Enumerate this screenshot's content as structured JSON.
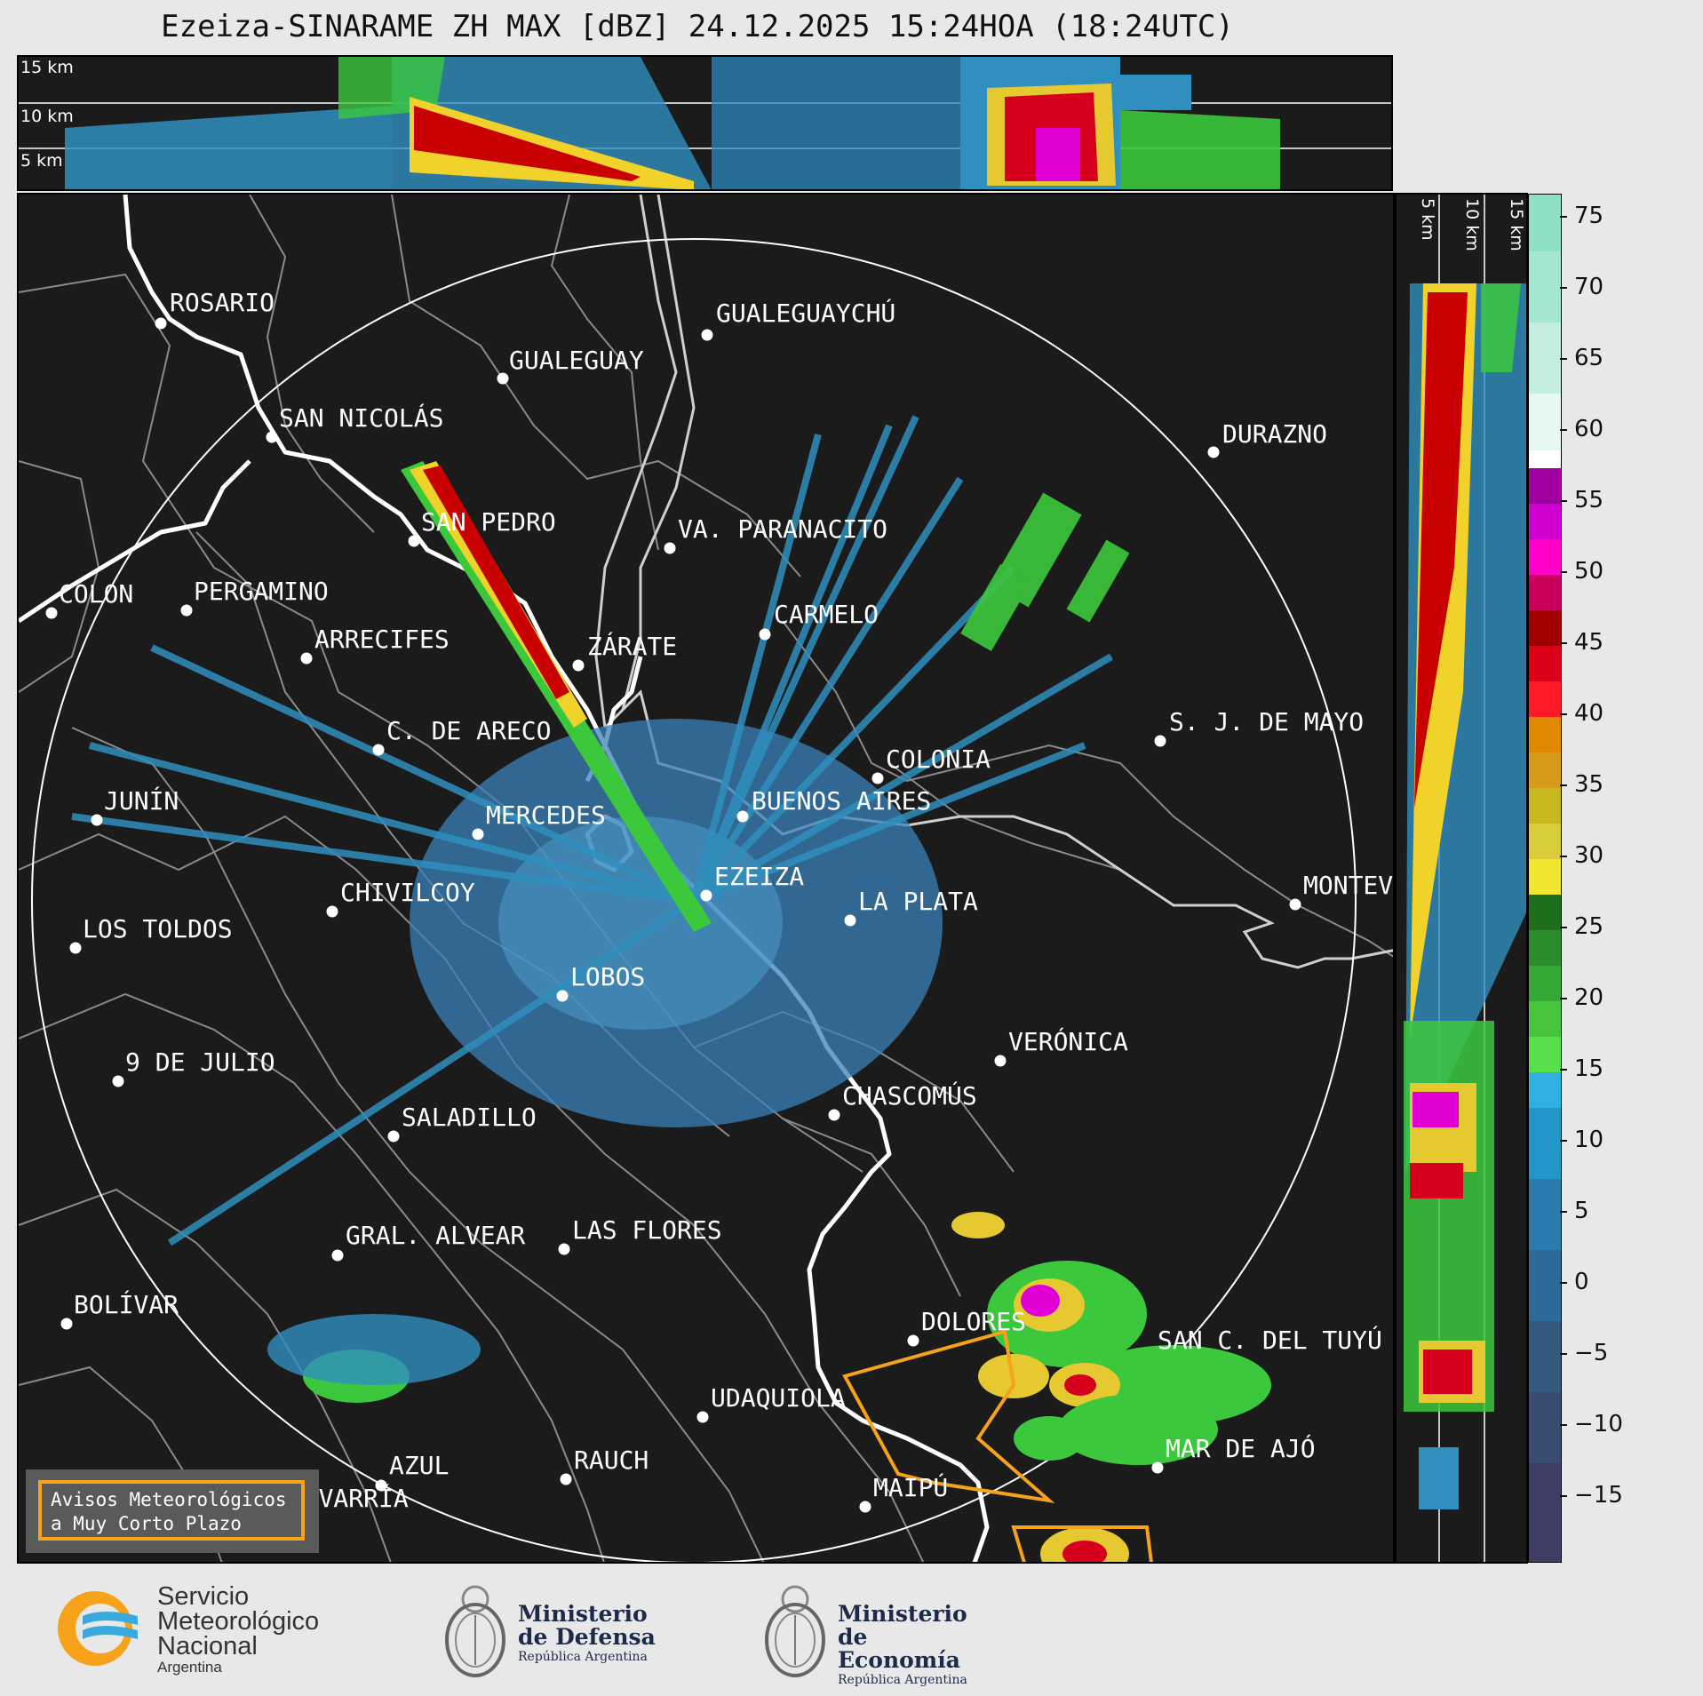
{
  "title": "Ezeiza-SINARAME ZH MAX [dBZ] 24.12.2025 15:24HOA (18:24UTC)",
  "top_panel": {
    "altitude_labels": [
      "15 km",
      "10 km",
      "5 km"
    ]
  },
  "side_panel": {
    "altitude_labels": [
      "5 km",
      "10 km",
      "15 km"
    ]
  },
  "colorbar": {
    "ticks": [
      "75",
      "70",
      "65",
      "60",
      "55",
      "50",
      "45",
      "40",
      "35",
      "30",
      "25",
      "20",
      "15",
      "10",
      "5",
      "0",
      "−5",
      "−10",
      "−15"
    ],
    "range": [
      -20,
      77
    ]
  },
  "cities": [
    "ROSARIO",
    "GUALEGUAYCHÚ",
    "GUALEGUAY",
    "SAN NICOLÁS",
    "DURAZNO",
    "SAN PEDRO",
    "VA. PARANACITO",
    "COLON",
    "PERGAMINO",
    "CARMELO",
    "ARRECIFES",
    "ZÁRATE",
    "S. J. DE MAYO",
    "C. DE ARECO",
    "COLONIA",
    "JUNÍN",
    "BUENOS AIRES",
    "MERCEDES",
    "MONTEVIDEO",
    "EZEIZA",
    "CHIVILCOY",
    "LA PLATA",
    "LOS TOLDOS",
    "LOBOS",
    "VERÓNICA",
    "9 DE JULIO",
    "CHASCOMÚS",
    "SALADILLO",
    "GRAL. ALVEAR",
    "LAS FLORES",
    "BOLÍVAR",
    "DOLORES",
    "SAN C. DEL TUYÚ",
    "UDAQUIOLA",
    "MAR DE AJÓ",
    "AZUL",
    "RAUCH",
    "OLAVARRÍA",
    "MAIPÚ"
  ],
  "warning_box": {
    "line1": "Avisos Meteorológicos",
    "line2": "a Muy Corto Plazo"
  },
  "logos": {
    "smn": [
      "Servicio",
      "Meteorológico",
      "Nacional",
      "Argentina"
    ],
    "defensa": [
      "Ministerio",
      "de Defensa",
      "República Argentina"
    ],
    "economia": [
      "Ministerio",
      "de Economía",
      "República Argentina"
    ]
  },
  "colors": {
    "background": "#1b1b1b",
    "warning_polygon": "#f6a21a",
    "coast": "#ffffff",
    "borders": "#8a8a8a"
  }
}
